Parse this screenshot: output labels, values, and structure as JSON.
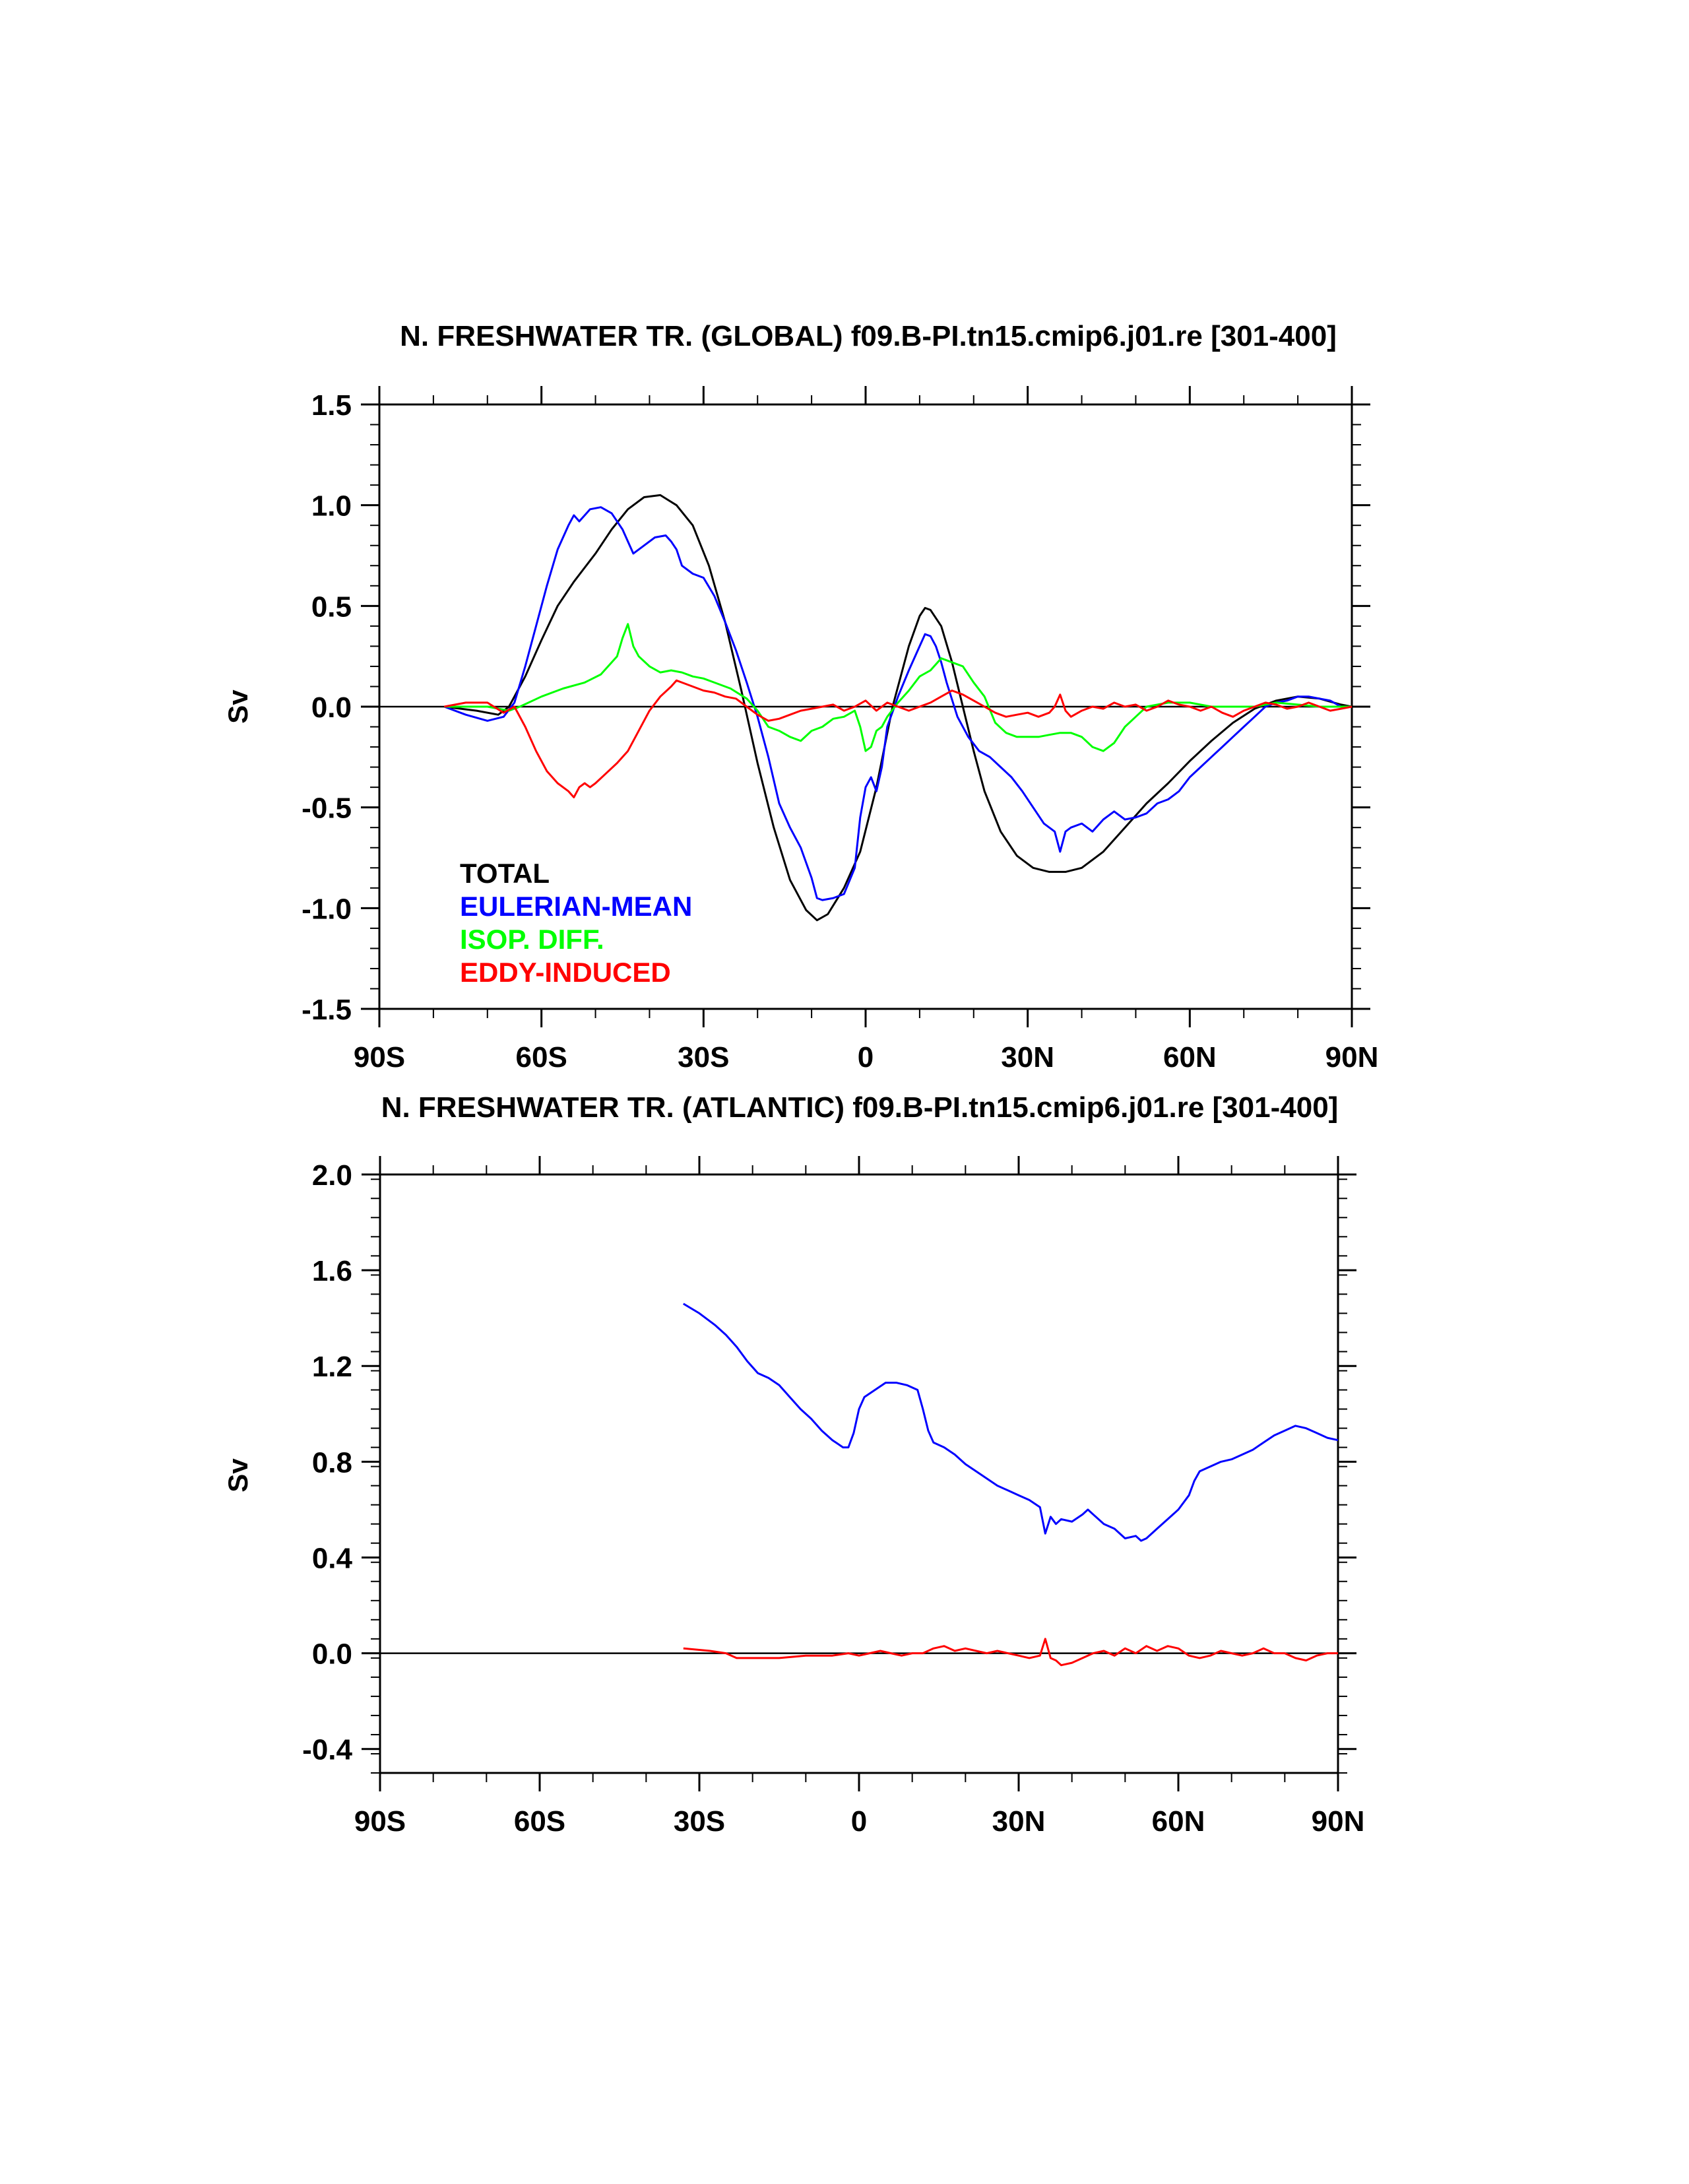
{
  "chart_data": [
    {
      "type": "line",
      "title": "N. FRESHWATER TR. (GLOBAL) f09.B-PI.tn15.cmip6.j01.re [301-400]",
      "xlabel": "",
      "ylabel": "Sv",
      "xlim": [
        -90,
        90
      ],
      "ylim": [
        -1.5,
        1.5
      ],
      "xticks": [
        -90,
        -60,
        -30,
        0,
        30,
        60,
        90
      ],
      "xticklabels": [
        "90S",
        "60S",
        "30S",
        "0",
        "30N",
        "60N",
        "90N"
      ],
      "yticks": [
        -1.5,
        -1.0,
        -0.5,
        0.0,
        0.5,
        1.0,
        1.5
      ],
      "yticklabels": [
        "-1.5",
        "-1.0",
        "-0.5",
        "0.0",
        "0.5",
        "1.0",
        "1.5"
      ],
      "grid": false,
      "legend": "lower-left",
      "series": [
        {
          "name": "TOTAL",
          "color": "#000000",
          "x": [
            -78,
            -72,
            -68,
            -66,
            -63,
            -60,
            -57,
            -54,
            -50,
            -47,
            -44,
            -41,
            -38,
            -35,
            -32,
            -29,
            -26,
            -23,
            -20,
            -17,
            -14,
            -11,
            -9,
            -7,
            -4,
            -1,
            2,
            5,
            8,
            10,
            11,
            12,
            14,
            16,
            18,
            20,
            22,
            25,
            28,
            31,
            34,
            37,
            40,
            44,
            48,
            52,
            56,
            60,
            64,
            68,
            72,
            76,
            80,
            84,
            88,
            90
          ],
          "values": [
            0.0,
            -0.02,
            -0.04,
            0.0,
            0.15,
            0.33,
            0.5,
            0.62,
            0.76,
            0.88,
            0.98,
            1.04,
            1.05,
            1.0,
            0.9,
            0.7,
            0.42,
            0.08,
            -0.28,
            -0.6,
            -0.86,
            -1.01,
            -1.06,
            -1.03,
            -0.9,
            -0.72,
            -0.4,
            0.0,
            0.3,
            0.45,
            0.49,
            0.48,
            0.4,
            0.22,
            0.0,
            -0.22,
            -0.42,
            -0.62,
            -0.74,
            -0.8,
            -0.82,
            -0.82,
            -0.8,
            -0.72,
            -0.6,
            -0.48,
            -0.38,
            -0.27,
            -0.17,
            -0.08,
            -0.01,
            0.03,
            0.05,
            0.04,
            0.01,
            0.0
          ]
        },
        {
          "name": "EULERIAN-MEAN",
          "color": "#0000ff",
          "x": [
            -78,
            -74,
            -70,
            -67,
            -65,
            -63,
            -61,
            -59,
            -57,
            -55,
            -54,
            -53,
            -51,
            -49,
            -47,
            -45,
            -44,
            -43,
            -42,
            -41,
            -39,
            -37,
            -36,
            -35,
            -34,
            -32,
            -30,
            -28,
            -26,
            -24,
            -22,
            -20,
            -18,
            -16,
            -14,
            -12,
            -10,
            -9,
            -8,
            -6,
            -4,
            -2,
            -1,
            0,
            1,
            2,
            3,
            4,
            6,
            8,
            10,
            11,
            12,
            13,
            14,
            15,
            17,
            19,
            21,
            23,
            25,
            27,
            29,
            31,
            33,
            34,
            35,
            36,
            37,
            38,
            40,
            42,
            44,
            46,
            48,
            50,
            52,
            54,
            56,
            58,
            60,
            62,
            64,
            66,
            68,
            70,
            72,
            74,
            76,
            78,
            80,
            82,
            84,
            86,
            88,
            90
          ],
          "values": [
            0.0,
            -0.04,
            -0.07,
            -0.05,
            0.02,
            0.2,
            0.4,
            0.6,
            0.78,
            0.9,
            0.95,
            0.92,
            0.98,
            0.99,
            0.96,
            0.88,
            0.82,
            0.76,
            0.78,
            0.8,
            0.84,
            0.85,
            0.82,
            0.78,
            0.7,
            0.66,
            0.64,
            0.55,
            0.42,
            0.28,
            0.12,
            -0.05,
            -0.25,
            -0.48,
            -0.6,
            -0.7,
            -0.85,
            -0.95,
            -0.96,
            -0.95,
            -0.93,
            -0.8,
            -0.55,
            -0.4,
            -0.35,
            -0.42,
            -0.3,
            -0.1,
            0.05,
            0.18,
            0.3,
            0.36,
            0.35,
            0.3,
            0.22,
            0.12,
            -0.05,
            -0.15,
            -0.22,
            -0.25,
            -0.3,
            -0.35,
            -0.42,
            -0.5,
            -0.58,
            -0.6,
            -0.62,
            -0.72,
            -0.62,
            -0.6,
            -0.58,
            -0.62,
            -0.56,
            -0.52,
            -0.56,
            -0.55,
            -0.53,
            -0.48,
            -0.46,
            -0.42,
            -0.35,
            -0.3,
            -0.25,
            -0.2,
            -0.15,
            -0.1,
            -0.05,
            0.0,
            0.02,
            0.03,
            0.05,
            0.05,
            0.04,
            0.03,
            0.0,
            0.0
          ]
        },
        {
          "name": "ISOP. DIFF.",
          "color": "#00ff00",
          "x": [
            -78,
            -70,
            -66,
            -64,
            -60,
            -56,
            -52,
            -49,
            -46,
            -45,
            -44,
            -43,
            -42,
            -40,
            -38,
            -36,
            -34,
            -32,
            -30,
            -28,
            -25,
            -22,
            -20,
            -18,
            -16,
            -14,
            -12,
            -10,
            -8,
            -6,
            -4,
            -2,
            -1,
            0,
            1,
            2,
            3,
            4,
            6,
            8,
            10,
            12,
            14,
            16,
            18,
            20,
            22,
            24,
            26,
            28,
            30,
            32,
            34,
            36,
            38,
            40,
            42,
            44,
            46,
            48,
            50,
            52,
            56,
            60,
            64,
            68,
            72,
            76,
            80,
            84,
            88,
            90
          ],
          "values": [
            0.0,
            0.0,
            -0.02,
            0.0,
            0.05,
            0.09,
            0.12,
            0.16,
            0.25,
            0.34,
            0.41,
            0.3,
            0.25,
            0.2,
            0.17,
            0.18,
            0.17,
            0.15,
            0.14,
            0.12,
            0.09,
            0.04,
            -0.02,
            -0.1,
            -0.12,
            -0.15,
            -0.17,
            -0.12,
            -0.1,
            -0.06,
            -0.05,
            -0.02,
            -0.1,
            -0.22,
            -0.2,
            -0.12,
            -0.1,
            -0.05,
            0.02,
            0.08,
            0.15,
            0.18,
            0.24,
            0.22,
            0.2,
            0.12,
            0.05,
            -0.08,
            -0.13,
            -0.15,
            -0.15,
            -0.15,
            -0.14,
            -0.13,
            -0.13,
            -0.15,
            -0.2,
            -0.22,
            -0.18,
            -0.1,
            -0.05,
            0.0,
            0.02,
            0.02,
            0.0,
            0.0,
            0.0,
            0.02,
            0.01,
            0.0,
            0.0,
            0.0
          ]
        },
        {
          "name": "EDDY-INDUCED",
          "color": "#ff0000",
          "x": [
            -78,
            -74,
            -70,
            -67,
            -65,
            -63,
            -61,
            -59,
            -57,
            -55,
            -54,
            -53,
            -52,
            -51,
            -50,
            -48,
            -46,
            -44,
            -42,
            -40,
            -38,
            -36,
            -35,
            -34,
            -32,
            -30,
            -28,
            -26,
            -24,
            -22,
            -20,
            -18,
            -16,
            -14,
            -12,
            -10,
            -8,
            -6,
            -4,
            -2,
            0,
            2,
            4,
            6,
            8,
            10,
            12,
            14,
            16,
            18,
            20,
            22,
            24,
            26,
            28,
            30,
            32,
            34,
            35,
            36,
            37,
            38,
            40,
            42,
            44,
            46,
            48,
            50,
            52,
            54,
            56,
            58,
            60,
            62,
            64,
            66,
            68,
            70,
            72,
            74,
            76,
            78,
            80,
            82,
            84,
            86,
            88,
            90
          ],
          "values": [
            0.0,
            0.02,
            0.02,
            -0.03,
            0.0,
            -0.1,
            -0.22,
            -0.32,
            -0.38,
            -0.42,
            -0.45,
            -0.4,
            -0.38,
            -0.4,
            -0.38,
            -0.33,
            -0.28,
            -0.22,
            -0.12,
            -0.02,
            0.05,
            0.1,
            0.13,
            0.12,
            0.1,
            0.08,
            0.07,
            0.05,
            0.04,
            0.0,
            -0.04,
            -0.07,
            -0.06,
            -0.04,
            -0.02,
            -0.01,
            0.0,
            0.01,
            -0.02,
            0.0,
            0.03,
            -0.02,
            0.02,
            0.0,
            -0.02,
            0.0,
            0.02,
            0.05,
            0.08,
            0.06,
            0.03,
            0.0,
            -0.03,
            -0.05,
            -0.04,
            -0.03,
            -0.05,
            -0.03,
            0.0,
            0.06,
            -0.02,
            -0.05,
            -0.02,
            0.0,
            -0.01,
            0.02,
            0.0,
            0.01,
            -0.02,
            0.0,
            0.03,
            0.01,
            0.0,
            -0.02,
            0.0,
            -0.03,
            -0.05,
            -0.02,
            0.0,
            0.02,
            0.01,
            -0.01,
            0.0,
            0.02,
            0.0,
            -0.02,
            -0.01,
            0.0
          ]
        }
      ],
      "reference_lines": [
        {
          "color": "#000000",
          "x": [
            -90,
            90
          ],
          "values": [
            0.0,
            0.0
          ]
        }
      ]
    },
    {
      "type": "line",
      "title": "N. FRESHWATER TR. (ATLANTIC) f09.B-PI.tn15.cmip6.j01.re [301-400]",
      "xlabel": "",
      "ylabel": "Sv",
      "xlim": [
        -90,
        90
      ],
      "ylim": [
        -0.5,
        2.0
      ],
      "xticks": [
        -90,
        -60,
        -30,
        0,
        30,
        60,
        90
      ],
      "xticklabels": [
        "90S",
        "60S",
        "30S",
        "0",
        "30N",
        "60N",
        "90N"
      ],
      "yticks": [
        -0.4,
        0.0,
        0.4,
        0.8,
        1.2,
        1.6,
        2.0
      ],
      "yticklabels": [
        "-0.4",
        "0.0",
        "0.4",
        "0.8",
        "1.2",
        "1.6",
        "2.0"
      ],
      "grid": false,
      "series": [
        {
          "color": "#0000ff",
          "x": [
            -33,
            -30,
            -27,
            -25,
            -23,
            -21,
            -19,
            -17,
            -15,
            -13,
            -11,
            -9,
            -7,
            -5,
            -3,
            -2,
            -1,
            0,
            1,
            3,
            5,
            7,
            9,
            11,
            12,
            13,
            14,
            16,
            18,
            20,
            22,
            24,
            26,
            28,
            30,
            32,
            34,
            35,
            36,
            37,
            38,
            40,
            42,
            43,
            44,
            46,
            48,
            50,
            52,
            53,
            54,
            56,
            58,
            60,
            62,
            63,
            64,
            66,
            68,
            70,
            72,
            74,
            76,
            78,
            80,
            82,
            84,
            86,
            88,
            90
          ],
          "values": [
            1.46,
            1.42,
            1.37,
            1.33,
            1.28,
            1.22,
            1.17,
            1.15,
            1.12,
            1.07,
            1.02,
            0.98,
            0.93,
            0.89,
            0.86,
            0.86,
            0.92,
            1.02,
            1.07,
            1.1,
            1.13,
            1.13,
            1.12,
            1.1,
            1.02,
            0.93,
            0.88,
            0.86,
            0.83,
            0.79,
            0.76,
            0.73,
            0.7,
            0.68,
            0.66,
            0.64,
            0.61,
            0.5,
            0.57,
            0.54,
            0.56,
            0.55,
            0.58,
            0.6,
            0.58,
            0.54,
            0.52,
            0.48,
            0.49,
            0.47,
            0.48,
            0.52,
            0.56,
            0.6,
            0.66,
            0.72,
            0.76,
            0.78,
            0.8,
            0.81,
            0.83,
            0.85,
            0.88,
            0.91,
            0.93,
            0.95,
            0.94,
            0.92,
            0.9,
            0.89
          ]
        },
        {
          "color": "#ff0000",
          "x": [
            -33,
            -28,
            -25,
            -23,
            -20,
            -15,
            -10,
            -5,
            -2,
            0,
            2,
            4,
            6,
            8,
            10,
            12,
            14,
            16,
            18,
            20,
            22,
            24,
            26,
            28,
            30,
            32,
            34,
            35,
            36,
            37,
            38,
            40,
            42,
            44,
            46,
            48,
            50,
            52,
            54,
            56,
            58,
            60,
            62,
            64,
            66,
            68,
            70,
            72,
            74,
            76,
            78,
            80,
            82,
            84,
            86,
            88,
            90
          ],
          "values": [
            0.02,
            0.01,
            0.0,
            -0.02,
            -0.02,
            -0.02,
            -0.01,
            -0.01,
            0.0,
            -0.01,
            0.0,
            0.01,
            0.0,
            -0.01,
            0.0,
            0.0,
            0.02,
            0.03,
            0.01,
            0.02,
            0.01,
            0.0,
            0.01,
            0.0,
            -0.01,
            -0.02,
            -0.01,
            0.06,
            -0.02,
            -0.03,
            -0.05,
            -0.04,
            -0.02,
            0.0,
            0.01,
            -0.01,
            0.02,
            0.0,
            0.03,
            0.01,
            0.03,
            0.02,
            -0.01,
            -0.02,
            -0.01,
            0.01,
            0.0,
            -0.01,
            0.0,
            0.02,
            0.0,
            0.0,
            -0.02,
            -0.03,
            -0.01,
            0.0,
            0.0
          ]
        }
      ],
      "reference_lines": [
        {
          "color": "#000000",
          "x": [
            -90,
            90
          ],
          "values": [
            0.0,
            0.0
          ]
        }
      ]
    }
  ]
}
